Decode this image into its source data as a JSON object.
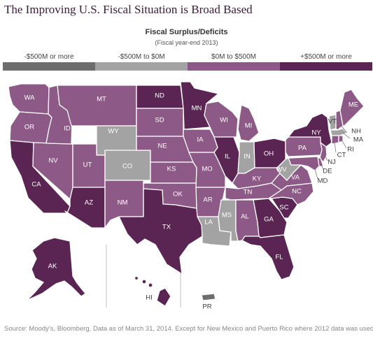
{
  "title": "The Improving U.S. Fiscal Situation is Broad Based",
  "legend": {
    "title": "Fiscal Surplus/Deficits",
    "subtitle": "(Fiscal year-end 2013)",
    "items": [
      {
        "label": "-$500M or more",
        "color": "#6d6d6d"
      },
      {
        "label": "-$500M to $0M",
        "color": "#a3a3a3"
      },
      {
        "label": "$0M to $500M",
        "color": "#8d5a88"
      },
      {
        "label": "+$500M or more",
        "color": "#5a2553"
      }
    ]
  },
  "colors": {
    "0": "#6d6d6d",
    "1": "#a3a3a3",
    "2": "#8d5a88",
    "3": "#5a2553"
  },
  "states": {
    "WA": {
      "label": "WA",
      "cat": 2
    },
    "OR": {
      "label": "OR",
      "cat": 2
    },
    "CA": {
      "label": "CA",
      "cat": 3
    },
    "NV": {
      "label": "NV",
      "cat": 2
    },
    "ID": {
      "label": "ID",
      "cat": 2
    },
    "MT": {
      "label": "MT",
      "cat": 2
    },
    "WY": {
      "label": "WY",
      "cat": 1
    },
    "UT": {
      "label": "UT",
      "cat": 2
    },
    "CO": {
      "label": "CO",
      "cat": 1
    },
    "AZ": {
      "label": "AZ",
      "cat": 3
    },
    "NM": {
      "label": "NM",
      "cat": 2
    },
    "ND": {
      "label": "ND",
      "cat": 3
    },
    "SD": {
      "label": "SD",
      "cat": 2
    },
    "NE": {
      "label": "NE",
      "cat": 2
    },
    "KS": {
      "label": "KS",
      "cat": 2
    },
    "OK": {
      "label": "OK",
      "cat": 2
    },
    "TX": {
      "label": "TX",
      "cat": 3
    },
    "MN": {
      "label": "MN",
      "cat": 3
    },
    "IA": {
      "label": "IA",
      "cat": 2
    },
    "MO": {
      "label": "MO",
      "cat": 2
    },
    "AR": {
      "label": "AR",
      "cat": 2
    },
    "LA": {
      "label": "LA",
      "cat": 1
    },
    "WI": {
      "label": "WI",
      "cat": 2
    },
    "IL": {
      "label": "IL",
      "cat": 3
    },
    "MI": {
      "label": "MI",
      "cat": 2
    },
    "IN": {
      "label": "IN",
      "cat": 1
    },
    "OH": {
      "label": "OH",
      "cat": 3
    },
    "KY": {
      "label": "KY",
      "cat": 2
    },
    "TN": {
      "label": "TN",
      "cat": 2
    },
    "MS": {
      "label": "MS",
      "cat": 1
    },
    "AL": {
      "label": "AL",
      "cat": 2
    },
    "GA": {
      "label": "GA",
      "cat": 3
    },
    "FL": {
      "label": "FL",
      "cat": 3
    },
    "SC": {
      "label": "SC",
      "cat": 3
    },
    "NC": {
      "label": "NC",
      "cat": 2
    },
    "VA": {
      "label": "VA",
      "cat": 2
    },
    "WV": {
      "label": "WV",
      "cat": 1
    },
    "PA": {
      "label": "PA",
      "cat": 2
    },
    "NY": {
      "label": "NY",
      "cat": 3
    },
    "VT": {
      "label": "VT",
      "cat": 1
    },
    "NH": {
      "label": "NH",
      "cat": 2
    },
    "ME": {
      "label": "ME",
      "cat": 2
    },
    "MA": {
      "label": "MA",
      "cat": 1
    },
    "RI": {
      "label": "RI",
      "cat": 2
    },
    "CT": {
      "label": "CT",
      "cat": 2
    },
    "NJ": {
      "label": "NJ",
      "cat": 2
    },
    "DE": {
      "label": "DE",
      "cat": 2
    },
    "MD": {
      "label": "MD",
      "cat": 2
    },
    "AK": {
      "label": "AK",
      "cat": 3
    },
    "HI": {
      "label": "HI",
      "cat": 3
    },
    "PR": {
      "label": "PR",
      "cat": 0
    }
  },
  "source": "Source: Moody's, Bloomberg, Data as of March 31, 2014. Except for New Mexico and Puerto Rico where 2012 data was used."
}
